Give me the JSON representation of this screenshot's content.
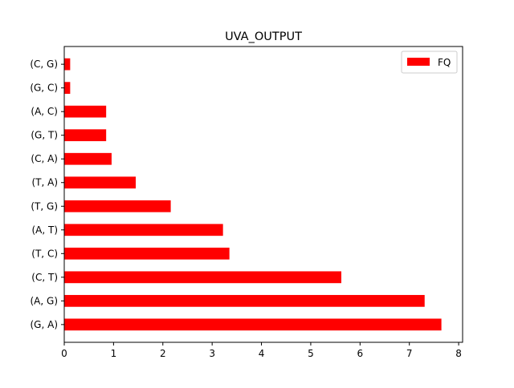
{
  "chart_data": {
    "type": "bar",
    "orientation": "horizontal",
    "title": "UVA_OUTPUT",
    "xlabel": "",
    "ylabel": "",
    "categories": [
      "(G, A)",
      "(A, G)",
      "(C, T)",
      "(T, C)",
      "(A, T)",
      "(T, G)",
      "(T, A)",
      "(C, A)",
      "(G, T)",
      "(A, C)",
      "(G, C)",
      "(C, G)"
    ],
    "series": [
      {
        "name": "FQ",
        "color": "#ff0000",
        "values": [
          7.65,
          7.31,
          5.62,
          3.35,
          3.22,
          2.16,
          1.45,
          0.96,
          0.85,
          0.85,
          0.12,
          0.12
        ]
      }
    ],
    "xlim": [
      0,
      8.08
    ],
    "xticks": [
      "0",
      "1",
      "2",
      "3",
      "4",
      "5",
      "6",
      "7",
      "8"
    ],
    "grid": false,
    "legend": "top-right"
  }
}
